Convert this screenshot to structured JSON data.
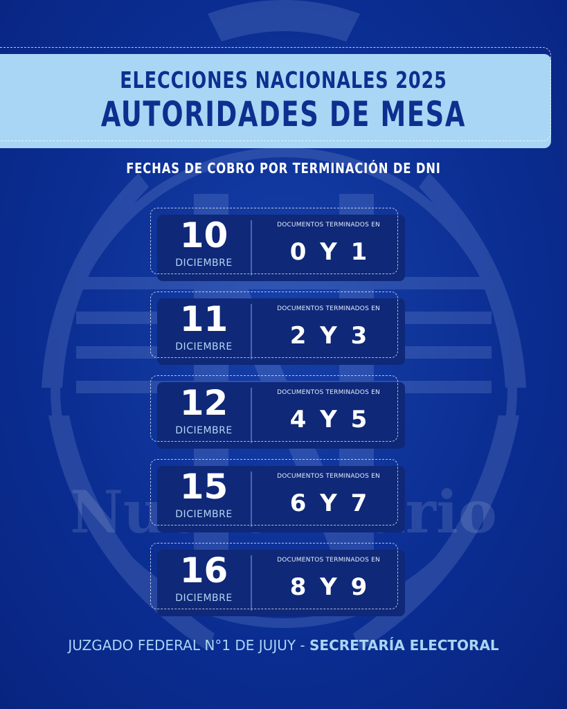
{
  "header": {
    "title_line1": "ELECCIONES NACIONALES 2025",
    "title_line2": "AUTORIDADES DE MESA"
  },
  "subtitle": "FECHAS DE COBRO POR TERMINACIÓN DE DNI",
  "cards": [
    {
      "day": "10",
      "month": "DICIEMBRE",
      "label": "DOCUMENTOS TERMINADOS EN",
      "digits": "0 Y 1"
    },
    {
      "day": "11",
      "month": "DICIEMBRE",
      "label": "DOCUMENTOS TERMINADOS EN",
      "digits": "2 Y 3"
    },
    {
      "day": "12",
      "month": "DICIEMBRE",
      "label": "DOCUMENTOS TERMINADOS EN",
      "digits": "4 Y 5"
    },
    {
      "day": "15",
      "month": "DICIEMBRE",
      "label": "DOCUMENTOS TERMINADOS EN",
      "digits": "6 Y 7"
    },
    {
      "day": "16",
      "month": "DICIEMBRE",
      "label": "DOCUMENTOS TERMINADOS EN",
      "digits": "8 Y 9"
    }
  ],
  "footer": {
    "prefix": "JUZGADO FEDERAL N°1 DE JUJUY - ",
    "highlight": "SECRETARÍA ELECTORAL"
  },
  "watermark": {
    "text": "Nuevo Diario",
    "icon": "coat-of-arms-icon"
  },
  "colors": {
    "background": "#0a2c8f",
    "banner": "#a9d6f5",
    "title": "#0d2f8f",
    "card": "#0f2877"
  }
}
